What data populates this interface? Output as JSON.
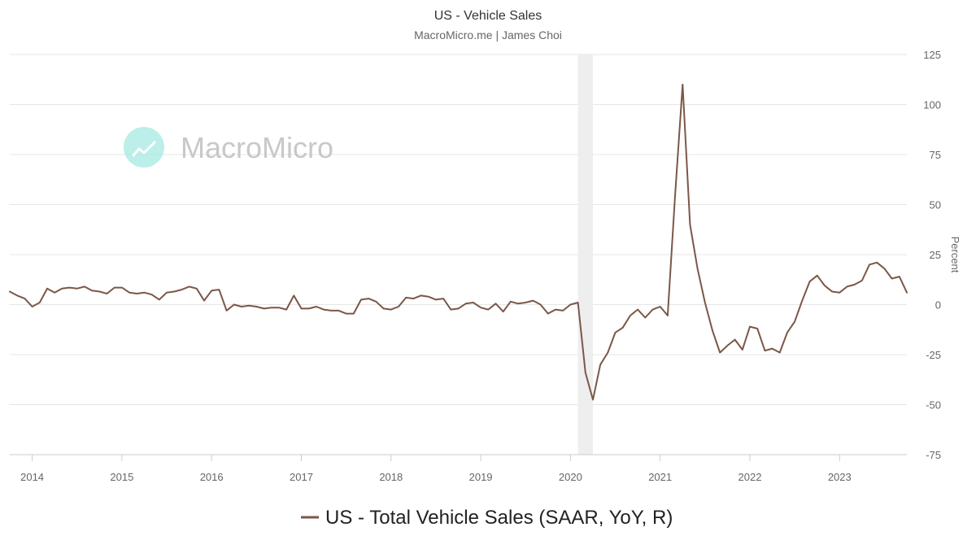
{
  "chart_data": {
    "type": "line",
    "title": "US - Vehicle Sales",
    "subtitle": "MacroMicro.me | James Choi",
    "watermark": "MacroMicro",
    "yaxis_side": "right",
    "ylabel": "Percent",
    "ylim": [
      -75,
      125
    ],
    "yticks": [
      125,
      100,
      75,
      50,
      25,
      0,
      -25,
      -50,
      -75
    ],
    "xlim": [
      "2013-10",
      "2023-10"
    ],
    "xticks": [
      "2014",
      "2015",
      "2016",
      "2017",
      "2018",
      "2019",
      "2020",
      "2021",
      "2022",
      "2023"
    ],
    "grid": true,
    "legend_position": "bottom-center",
    "recession_band": [
      "2020-02",
      "2020-04"
    ],
    "series": [
      {
        "name": "US - Total Vehicle Sales (SAAR, YoY, R)",
        "color": "#7b5748",
        "points": [
          [
            "2013-10",
            6.5
          ],
          [
            "2013-11",
            4.5
          ],
          [
            "2013-12",
            3
          ],
          [
            "2014-01",
            -1
          ],
          [
            "2014-02",
            1
          ],
          [
            "2014-03",
            8
          ],
          [
            "2014-04",
            6
          ],
          [
            "2014-05",
            8
          ],
          [
            "2014-06",
            8.5
          ],
          [
            "2014-07",
            8
          ],
          [
            "2014-08",
            9
          ],
          [
            "2014-09",
            7
          ],
          [
            "2014-10",
            6.5
          ],
          [
            "2014-11",
            5.5
          ],
          [
            "2014-12",
            8.5
          ],
          [
            "2015-01",
            8.5
          ],
          [
            "2015-02",
            6
          ],
          [
            "2015-03",
            5.5
          ],
          [
            "2015-04",
            6
          ],
          [
            "2015-05",
            5
          ],
          [
            "2015-06",
            2.5
          ],
          [
            "2015-07",
            6
          ],
          [
            "2015-08",
            6.5
          ],
          [
            "2015-09",
            7.5
          ],
          [
            "2015-10",
            9
          ],
          [
            "2015-11",
            8
          ],
          [
            "2015-12",
            2
          ],
          [
            "2016-01",
            7
          ],
          [
            "2016-02",
            7.5
          ],
          [
            "2016-03",
            -3
          ],
          [
            "2016-04",
            0
          ],
          [
            "2016-05",
            -1
          ],
          [
            "2016-06",
            -0.5
          ],
          [
            "2016-07",
            -1
          ],
          [
            "2016-08",
            -2
          ],
          [
            "2016-09",
            -1.5
          ],
          [
            "2016-10",
            -1.5
          ],
          [
            "2016-11",
            -2.5
          ],
          [
            "2016-12",
            4.5
          ],
          [
            "2017-01",
            -2
          ],
          [
            "2017-02",
            -2
          ],
          [
            "2017-03",
            -1
          ],
          [
            "2017-04",
            -2.5
          ],
          [
            "2017-05",
            -3
          ],
          [
            "2017-06",
            -3
          ],
          [
            "2017-07",
            -4.5
          ],
          [
            "2017-08",
            -4.5
          ],
          [
            "2017-09",
            2.5
          ],
          [
            "2017-10",
            3
          ],
          [
            "2017-11",
            1.5
          ],
          [
            "2017-12",
            -2
          ],
          [
            "2018-01",
            -2.5
          ],
          [
            "2018-02",
            -1
          ],
          [
            "2018-03",
            3.5
          ],
          [
            "2018-04",
            3
          ],
          [
            "2018-05",
            4.5
          ],
          [
            "2018-06",
            4
          ],
          [
            "2018-07",
            2.5
          ],
          [
            "2018-08",
            3
          ],
          [
            "2018-09",
            -2.5
          ],
          [
            "2018-10",
            -2
          ],
          [
            "2018-11",
            0.5
          ],
          [
            "2018-12",
            1
          ],
          [
            "2019-01",
            -1.5
          ],
          [
            "2019-02",
            -2.5
          ],
          [
            "2019-03",
            0.5
          ],
          [
            "2019-04",
            -3.5
          ],
          [
            "2019-05",
            1.5
          ],
          [
            "2019-06",
            0.5
          ],
          [
            "2019-07",
            1
          ],
          [
            "2019-08",
            2
          ],
          [
            "2019-09",
            0
          ],
          [
            "2019-10",
            -4.5
          ],
          [
            "2019-11",
            -2.5
          ],
          [
            "2019-12",
            -3
          ],
          [
            "2020-01",
            0
          ],
          [
            "2020-02",
            1
          ],
          [
            "2020-03",
            -34
          ],
          [
            "2020-04",
            -47.5
          ],
          [
            "2020-05",
            -30
          ],
          [
            "2020-06",
            -24
          ],
          [
            "2020-07",
            -14
          ],
          [
            "2020-08",
            -11.5
          ],
          [
            "2020-09",
            -5.5
          ],
          [
            "2020-10",
            -2.5
          ],
          [
            "2020-11",
            -6.5
          ],
          [
            "2020-12",
            -2.5
          ],
          [
            "2021-01",
            -1
          ],
          [
            "2021-02",
            -5.5
          ],
          [
            "2021-03",
            55
          ],
          [
            "2021-04",
            110
          ],
          [
            "2021-05",
            40
          ],
          [
            "2021-06",
            18
          ],
          [
            "2021-07",
            1
          ],
          [
            "2021-08",
            -13
          ],
          [
            "2021-09",
            -24
          ],
          [
            "2021-10",
            -20.5
          ],
          [
            "2021-11",
            -17.5
          ],
          [
            "2021-12",
            -22.5
          ],
          [
            "2022-01",
            -11
          ],
          [
            "2022-02",
            -12
          ],
          [
            "2022-03",
            -23
          ],
          [
            "2022-04",
            -22
          ],
          [
            "2022-05",
            -24
          ],
          [
            "2022-06",
            -14
          ],
          [
            "2022-07",
            -8.5
          ],
          [
            "2022-08",
            2
          ],
          [
            "2022-09",
            11.5
          ],
          [
            "2022-10",
            14.5
          ],
          [
            "2022-11",
            9.5
          ],
          [
            "2022-12",
            6.5
          ],
          [
            "2023-01",
            6
          ],
          [
            "2023-02",
            9
          ],
          [
            "2023-03",
            10
          ],
          [
            "2023-04",
            12
          ],
          [
            "2023-05",
            20
          ],
          [
            "2023-06",
            21
          ],
          [
            "2023-07",
            18
          ],
          [
            "2023-08",
            13
          ],
          [
            "2023-09",
            14
          ],
          [
            "2023-10",
            6
          ]
        ]
      }
    ]
  }
}
